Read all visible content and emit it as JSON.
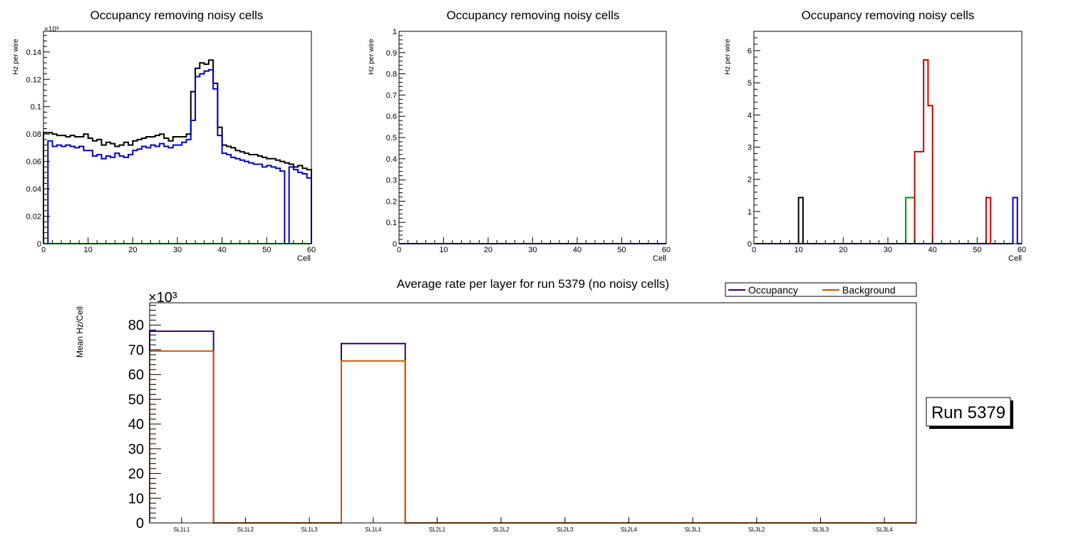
{
  "colors": {
    "black": "#000000",
    "blue": "#0000cc",
    "green": "#009900",
    "red": "#cc0000",
    "occupancy": "#33006b",
    "background": "#cc5500"
  },
  "chart_data": [
    {
      "id": "p1",
      "type": "line",
      "style": "step",
      "title": "Occupancy removing noisy cells",
      "xlabel": "Cell",
      "ylabel": "Hz per wire",
      "exponent": "×10⁶",
      "xlim": [
        0,
        60
      ],
      "ylim": [
        0,
        0.155
      ],
      "xticks": [
        0,
        10,
        20,
        30,
        40,
        50,
        60
      ],
      "yticks": [
        0,
        0.02,
        0.04,
        0.06,
        0.08,
        0.1,
        0.12,
        0.14
      ],
      "ytick_labels": [
        "0",
        "0.02",
        "0.04",
        "0.06",
        "0.08",
        "0.1",
        "0.12",
        "0.14"
      ],
      "series": [
        {
          "name": "black",
          "color": "#000000",
          "x0": 0,
          "bin": 1,
          "values": [
            0.081,
            0.081,
            0.08,
            0.079,
            0.079,
            0.078,
            0.079,
            0.078,
            0.078,
            0.08,
            0.077,
            0.075,
            0.076,
            0.072,
            0.074,
            0.073,
            0.071,
            0.072,
            0.074,
            0.072,
            0.075,
            0.076,
            0.077,
            0.078,
            0.078,
            0.079,
            0.08,
            0.077,
            0.075,
            0.078,
            0.078,
            0.078,
            0.08,
            0.111,
            0.128,
            0.132,
            0.131,
            0.134,
            0.117,
            0.085,
            0.072,
            0.071,
            0.07,
            0.068,
            0.067,
            0.066,
            0.065,
            0.065,
            0.064,
            0.063,
            0.062,
            0.062,
            0.061,
            0.06,
            0.059,
            0.058,
            0.056,
            0.057,
            0.055,
            0.054
          ]
        },
        {
          "name": "blue",
          "color": "#0000cc",
          "x0": 0,
          "bin": 1,
          "values": [
            0,
            0.075,
            0.071,
            0.072,
            0.071,
            0.072,
            0.071,
            0.07,
            0.071,
            0.068,
            0.068,
            0.064,
            0.065,
            0.062,
            0.064,
            0.063,
            0.066,
            0.064,
            0.063,
            0.065,
            0.068,
            0.069,
            0.071,
            0.07,
            0.072,
            0.071,
            0.073,
            0.071,
            0.07,
            0.072,
            0.072,
            0.074,
            0.076,
            0.09,
            0.122,
            0.124,
            0.126,
            0.127,
            0.113,
            0.079,
            0.066,
            0.065,
            0.063,
            0.062,
            0.061,
            0.06,
            0.059,
            0.058,
            0.058,
            0.056,
            0.057,
            0.056,
            0.055,
            0.053,
            0,
            0.056,
            0.054,
            0.052,
            0.051,
            0.048
          ]
        },
        {
          "name": "green",
          "color": "#009900",
          "x0": 0,
          "bin": 1,
          "values": [
            0,
            0,
            0,
            0,
            0,
            0,
            0,
            0,
            0,
            0,
            0,
            0,
            0,
            0,
            0,
            0,
            0,
            0,
            0,
            0,
            0,
            0,
            0,
            0,
            0,
            0,
            0,
            0,
            0,
            0,
            0,
            0,
            0,
            0,
            0,
            0,
            0,
            0,
            0,
            0,
            0,
            0,
            0,
            0,
            0,
            0,
            0,
            0,
            0,
            0,
            0,
            0,
            0,
            0,
            0,
            0,
            0,
            0,
            0,
            0
          ]
        }
      ]
    },
    {
      "id": "p2",
      "type": "line",
      "style": "step",
      "title": "Occupancy removing noisy cells",
      "xlabel": "Cell",
      "ylabel": "Hz per wire",
      "xlim": [
        0,
        60
      ],
      "ylim": [
        0,
        1
      ],
      "xticks": [
        0,
        10,
        20,
        30,
        40,
        50,
        60
      ],
      "yticks": [
        0,
        0.1,
        0.2,
        0.3,
        0.4,
        0.5,
        0.6,
        0.7,
        0.8,
        0.9,
        1
      ],
      "ytick_labels": [
        "0",
        "0.1",
        "0.2",
        "0.3",
        "0.4",
        "0.5",
        "0.6",
        "0.7",
        "0.8",
        "0.9",
        "1"
      ],
      "series": [
        {
          "name": "blue",
          "color": "#0000cc",
          "x0": 0,
          "bin": 1,
          "values": [
            0,
            0,
            0,
            0,
            0,
            0,
            0,
            0,
            0,
            0,
            0,
            0,
            0,
            0,
            0,
            0,
            0,
            0,
            0,
            0,
            0,
            0,
            0,
            0,
            0,
            0,
            0,
            0,
            0,
            0,
            0,
            0,
            0,
            0,
            0,
            0,
            0,
            0,
            0,
            0,
            0,
            0,
            0,
            0,
            0,
            0,
            0,
            0,
            0,
            0,
            0,
            0,
            0,
            0,
            0,
            0,
            0,
            0,
            0,
            0
          ]
        }
      ]
    },
    {
      "id": "p3",
      "type": "line",
      "style": "step",
      "title": "Occupancy removing noisy cells",
      "xlabel": "Cell",
      "ylabel": "Hz per wire",
      "xlim": [
        0,
        60
      ],
      "ylim": [
        0,
        6.6
      ],
      "xticks": [
        0,
        10,
        20,
        30,
        40,
        50,
        60
      ],
      "yticks": [
        0,
        1,
        2,
        3,
        4,
        5,
        6
      ],
      "ytick_labels": [
        "0",
        "1",
        "2",
        "3",
        "4",
        "5",
        "6"
      ],
      "series": [
        {
          "name": "blue",
          "color": "#0000cc",
          "x0": 0,
          "bin": 1,
          "values": [
            0,
            0,
            0,
            0,
            0,
            0,
            0,
            0,
            0,
            0,
            0,
            0,
            0,
            0,
            0,
            0,
            0,
            0,
            0,
            0,
            0,
            0,
            0,
            0,
            0,
            0,
            0,
            0,
            0,
            0,
            0,
            0,
            0,
            0,
            0,
            0,
            0,
            0,
            0,
            0,
            0,
            0,
            0,
            0,
            0,
            0,
            0,
            0,
            0,
            0,
            0,
            0,
            0,
            0,
            0,
            0,
            0,
            0,
            1.43,
            0
          ]
        },
        {
          "name": "black",
          "color": "#000000",
          "x0": 10,
          "bin": 1,
          "values": [
            1.43
          ]
        },
        {
          "name": "green",
          "color": "#009900",
          "x0": 34,
          "bin": 1,
          "values": [
            1.43,
            1.43
          ]
        },
        {
          "name": "red",
          "color": "#cc0000",
          "x0": 36,
          "bin": 1,
          "values": [
            2.86,
            2.86,
            5.71,
            4.29
          ]
        },
        {
          "name": "red2",
          "color": "#cc0000",
          "x0": 52,
          "bin": 1,
          "values": [
            1.43
          ]
        }
      ]
    },
    {
      "id": "p4",
      "type": "bar",
      "style": "step",
      "title": "Average rate per layer for run 5379 (no noisy cells)",
      "ylabel": "Mean Hz/Cell",
      "exponent": "×10³",
      "categories": [
        "SL1L1",
        "SL1L2",
        "SL1L3",
        "SL1L4",
        "SL2L1",
        "SL2L2",
        "SL2L3",
        "SL2L4",
        "SL3L1",
        "SL3L2",
        "SL3L3",
        "SL3L4"
      ],
      "ylim": [
        0,
        89
      ],
      "yticks": [
        0,
        10,
        20,
        30,
        40,
        50,
        60,
        70,
        80
      ],
      "ytick_labels": [
        "0",
        "10",
        "20",
        "30",
        "40",
        "50",
        "60",
        "70",
        "80"
      ],
      "series": [
        {
          "name": "Occupancy",
          "color": "#33006b",
          "values": [
            77.5,
            0,
            0,
            72.5,
            0,
            0,
            0,
            0,
            0,
            0,
            0,
            0
          ]
        },
        {
          "name": "Background",
          "color": "#cc5500",
          "values": [
            69.5,
            0,
            0,
            65.5,
            0,
            0,
            0,
            0,
            0,
            0,
            0,
            0
          ]
        }
      ],
      "legend": {
        "position": "top-right",
        "entries": [
          "Occupancy",
          "Background"
        ]
      }
    }
  ],
  "run_label": "Run 5379"
}
